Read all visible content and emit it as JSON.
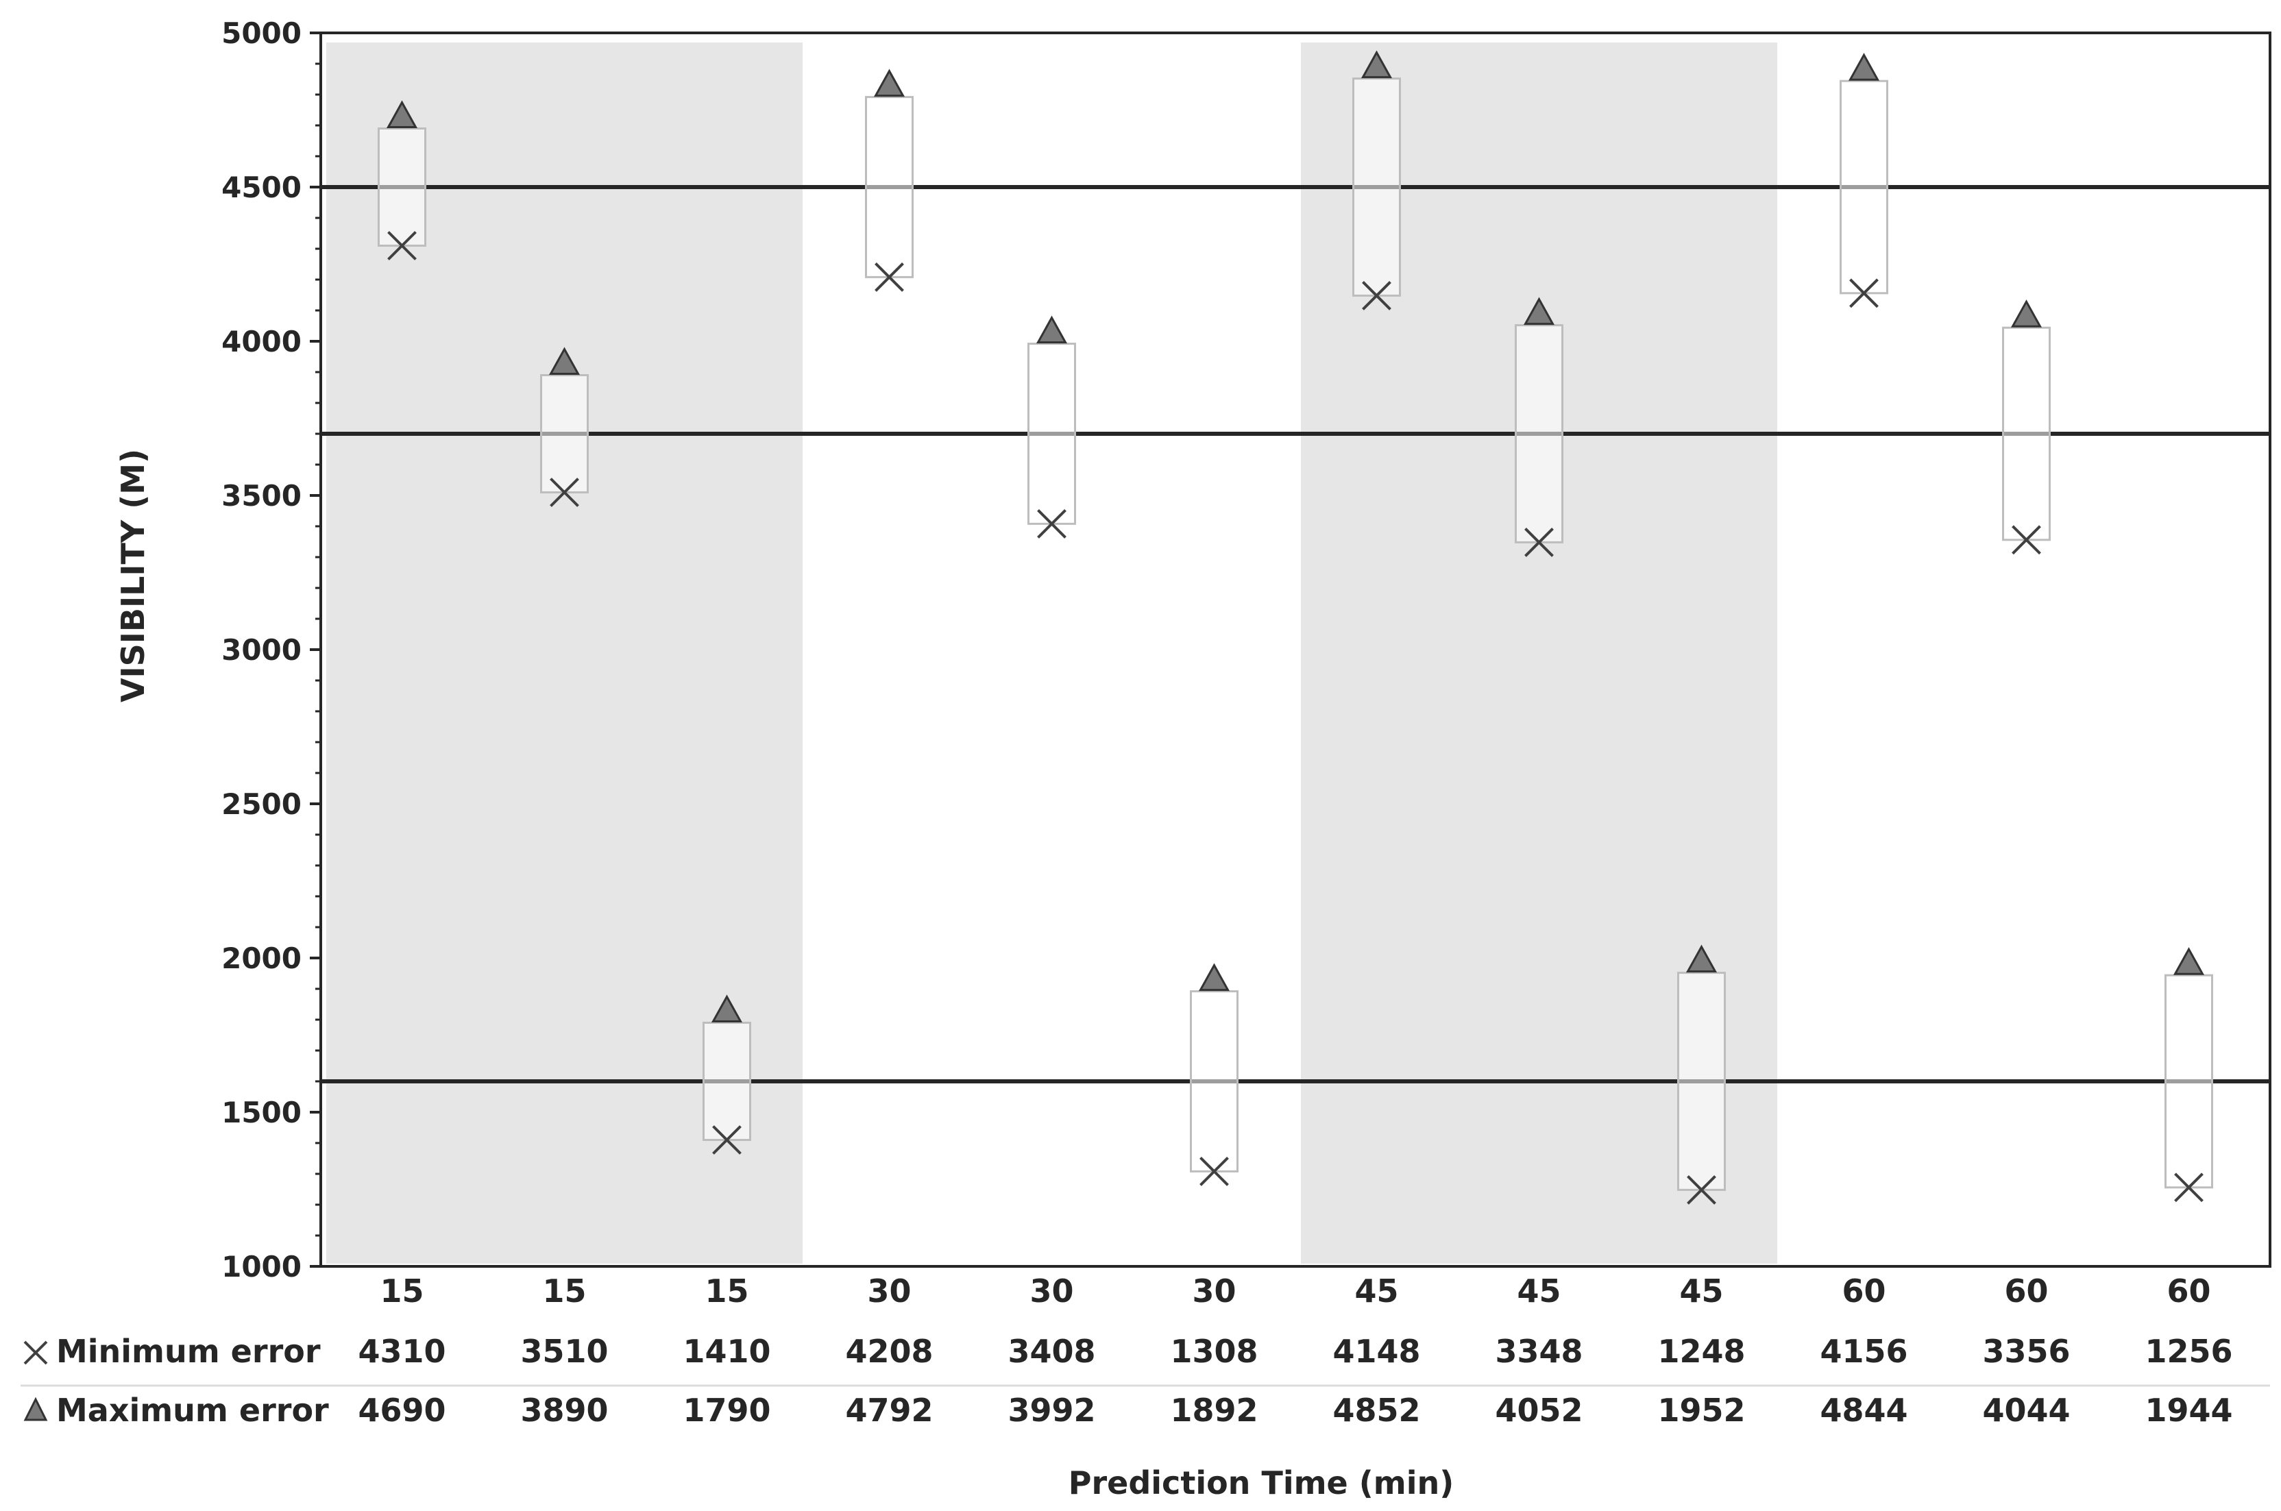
{
  "chart_data": {
    "type": "scatter",
    "title": "",
    "xlabel": "Prediction Time (min)",
    "ylabel": "VISIBILITY  (M)",
    "ylim": [
      1000,
      5000
    ],
    "yticks": [
      1000,
      1500,
      2000,
      2500,
      3000,
      3500,
      4000,
      4500,
      5000
    ],
    "categories": [
      "15",
      "15",
      "15",
      "30",
      "30",
      "30",
      "45",
      "45",
      "45",
      "60",
      "60",
      "60"
    ],
    "shaded_groups": [
      "15",
      "45"
    ],
    "reference_lines": [
      4500,
      3700,
      1600
    ],
    "grid": false,
    "legend": "in data table below axis",
    "series": [
      {
        "name": "Minimum error",
        "marker": "x",
        "values": [
          4310,
          3510,
          1410,
          4208,
          3408,
          1308,
          4148,
          3348,
          1248,
          4156,
          3356,
          1256
        ]
      },
      {
        "name": "Maximum error",
        "marker": "triangle",
        "values": [
          4690,
          3890,
          1790,
          4792,
          3992,
          1892,
          4852,
          4052,
          1952,
          4844,
          4044,
          1944
        ]
      }
    ],
    "colors": {
      "shade": "#e6e6e6",
      "marker_fill": "#7a7a7a",
      "marker_stroke": "#333333",
      "x_marker": "#404040",
      "range_box": "#bdbdbd",
      "line": "#262626",
      "text": "#262626"
    }
  }
}
